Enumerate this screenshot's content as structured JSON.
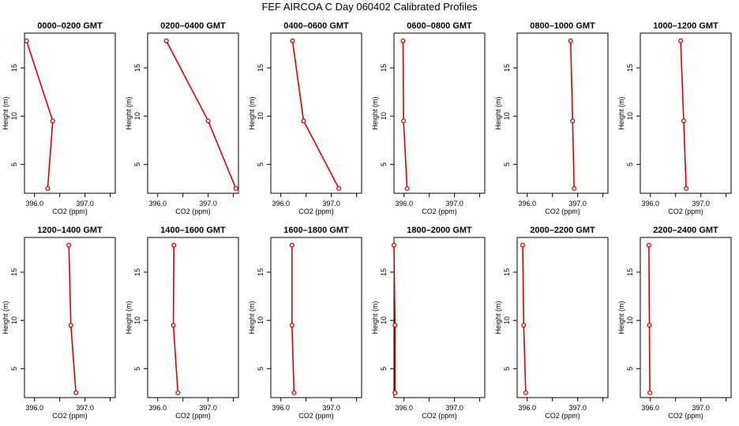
{
  "chart_data": {
    "type": "line",
    "title": "FEF  AIRCOA C  Day 060402  Calibrated Profiles",
    "xlabel": "CO2 (ppm)",
    "ylabel": "Height (m)",
    "xlim": [
      395.8,
      397.6
    ],
    "ylim": [
      2.0,
      18.6
    ],
    "xticks": [
      396.0,
      396.5,
      397.0,
      397.5
    ],
    "xtick_labels": [
      "396.0",
      "",
      "397.0",
      ""
    ],
    "yticks": [
      5,
      10,
      15
    ],
    "ytick_labels": [
      "5",
      "10",
      "15"
    ],
    "heights": [
      17.8,
      9.5,
      2.5
    ],
    "line_color": "#dd0000",
    "panels": [
      {
        "title": "0000–0200 GMT",
        "values": [
          395.84,
          396.36,
          396.26
        ]
      },
      {
        "title": "0200–0400 GMT",
        "values": [
          396.17,
          397.0,
          397.55
        ]
      },
      {
        "title": "0400–0600 GMT",
        "values": [
          396.23,
          396.45,
          397.15
        ]
      },
      {
        "title": "0600–0800 GMT",
        "values": [
          395.98,
          395.99,
          396.06
        ]
      },
      {
        "title": "0800–1000 GMT",
        "values": [
          396.86,
          396.9,
          396.93
        ]
      },
      {
        "title": "1000–1200 GMT",
        "values": [
          396.6,
          396.66,
          396.71
        ]
      },
      {
        "title": "1200–1400 GMT",
        "values": [
          396.68,
          396.72,
          396.82
        ]
      },
      {
        "title": "1400–1600 GMT",
        "values": [
          396.32,
          396.31,
          396.4
        ]
      },
      {
        "title": "1600–1800 GMT",
        "values": [
          396.22,
          396.22,
          396.26
        ]
      },
      {
        "title": "1800–2000 GMT",
        "values": [
          395.8,
          395.82,
          395.82
        ]
      },
      {
        "title": "2000–2200 GMT",
        "values": [
          395.91,
          395.93,
          395.97
        ]
      },
      {
        "title": "2200–2400 GMT",
        "values": [
          395.97,
          395.98,
          395.99
        ]
      }
    ]
  }
}
